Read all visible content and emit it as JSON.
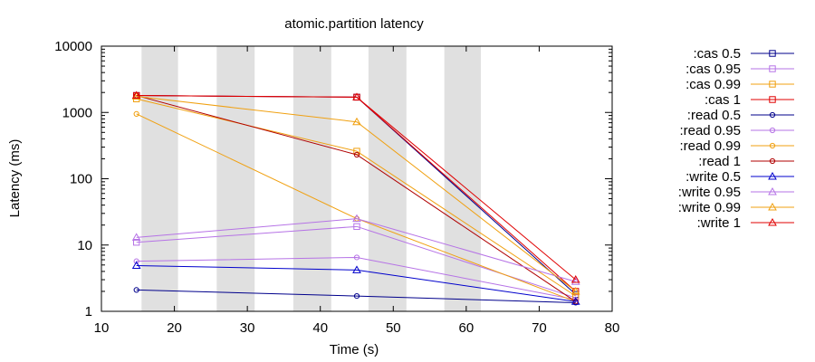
{
  "chart_data": {
    "type": "line",
    "title": "atomic.partition latency",
    "xlabel": "Time (s)",
    "ylabel": "Latency (ms)",
    "xlim": [
      10,
      80
    ],
    "ylim": [
      1,
      10000
    ],
    "yscale": "log",
    "xticks": [
      "10",
      "20",
      "30",
      "40",
      "50",
      "60",
      "70",
      "80"
    ],
    "yticks": [
      "1",
      "10",
      "100",
      "1000",
      "10000"
    ],
    "grid": false,
    "legend_position": "right",
    "shaded_intervals": [
      [
        15.5,
        20.5
      ],
      [
        25.8,
        31.0
      ],
      [
        36.3,
        41.5
      ],
      [
        46.6,
        51.8
      ],
      [
        57.0,
        62.0
      ]
    ],
    "series": [
      {
        "name": ":cas 0.5",
        "color": "#00008b",
        "marker": "square",
        "x": [
          14.8,
          45,
          75
        ],
        "y": [
          1800,
          1700,
          1.8
        ]
      },
      {
        "name": ":cas 0.95",
        "color": "#b673e6",
        "marker": "square",
        "x": [
          14.8,
          45,
          75
        ],
        "y": [
          11,
          19,
          1.6
        ]
      },
      {
        "name": ":cas 0.99",
        "color": "#f0a010",
        "marker": "square",
        "x": [
          14.8,
          45,
          75
        ],
        "y": [
          1600,
          260,
          1.7
        ]
      },
      {
        "name": ":cas 1",
        "color": "#e00000",
        "marker": "square",
        "x": [
          14.8,
          45,
          75
        ],
        "y": [
          1800,
          1700,
          2.0
        ]
      },
      {
        "name": ":read 0.5",
        "color": "#00008b",
        "marker": "circle",
        "x": [
          14.8,
          45,
          75
        ],
        "y": [
          2.1,
          1.7,
          1.35
        ]
      },
      {
        "name": ":read 0.95",
        "color": "#b673e6",
        "marker": "circle",
        "x": [
          14.8,
          45,
          75
        ],
        "y": [
          5.7,
          6.5,
          1.5
        ]
      },
      {
        "name": ":read 0.99",
        "color": "#f0a010",
        "marker": "circle",
        "x": [
          14.8,
          45,
          75
        ],
        "y": [
          950,
          25,
          1.4
        ]
      },
      {
        "name": ":read 1",
        "color": "#b00000",
        "marker": "circle",
        "x": [
          14.8,
          45,
          75
        ],
        "y": [
          1800,
          230,
          1.4
        ]
      },
      {
        "name": ":write 0.5",
        "color": "#0000cc",
        "marker": "triangle",
        "x": [
          14.8,
          45,
          75
        ],
        "y": [
          4.9,
          4.2,
          1.4
        ]
      },
      {
        "name": ":write 0.95",
        "color": "#b673e6",
        "marker": "triangle",
        "x": [
          14.8,
          45,
          75
        ],
        "y": [
          13,
          25,
          2.8
        ]
      },
      {
        "name": ":write 0.99",
        "color": "#f0a010",
        "marker": "triangle",
        "x": [
          14.8,
          45,
          75
        ],
        "y": [
          1750,
          720,
          2.0
        ]
      },
      {
        "name": ":write 1",
        "color": "#e00000",
        "marker": "triangle",
        "x": [
          14.8,
          45,
          75
        ],
        "y": [
          1800,
          1700,
          3.0
        ]
      }
    ]
  }
}
